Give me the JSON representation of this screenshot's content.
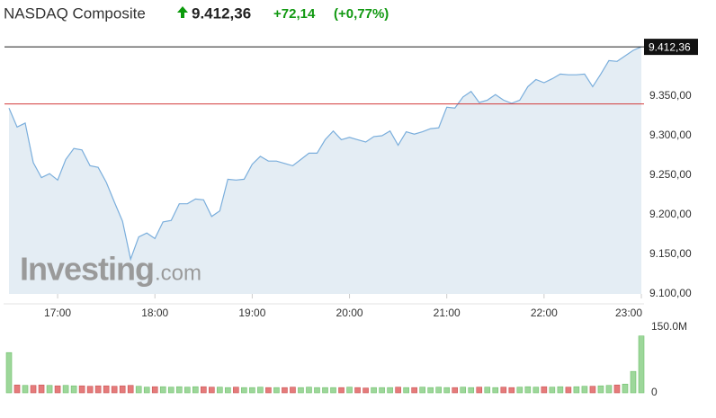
{
  "chart_data": {
    "type": "area",
    "title": "NASDAQ Composite",
    "price_label": "9.412,36",
    "change_label": "+72,14",
    "change_pct_label": "(+0,77%)",
    "watermark": "Investing",
    "watermark_suffix": ".com",
    "last": {
      "value": 9412.36,
      "label": "9.412,36"
    },
    "prev_close": 9340.22,
    "x": [
      "16:30",
      "16:35",
      "16:40",
      "16:45",
      "16:50",
      "16:55",
      "17:00",
      "17:05",
      "17:10",
      "17:15",
      "17:20",
      "17:25",
      "17:30",
      "17:35",
      "17:40",
      "17:45",
      "17:50",
      "17:55",
      "18:00",
      "18:05",
      "18:10",
      "18:15",
      "18:20",
      "18:25",
      "18:30",
      "18:35",
      "18:40",
      "18:45",
      "18:50",
      "18:55",
      "19:00",
      "19:05",
      "19:10",
      "19:15",
      "19:20",
      "19:25",
      "19:30",
      "19:35",
      "19:40",
      "19:45",
      "19:50",
      "19:55",
      "20:00",
      "20:05",
      "20:10",
      "20:15",
      "20:20",
      "20:25",
      "20:30",
      "20:35",
      "20:40",
      "20:45",
      "20:50",
      "20:55",
      "21:00",
      "21:05",
      "21:10",
      "21:15",
      "21:20",
      "21:25",
      "21:30",
      "21:35",
      "21:40",
      "21:45",
      "21:50",
      "21:55",
      "22:00",
      "22:05",
      "22:10",
      "22:15",
      "22:20",
      "22:25",
      "22:30",
      "22:35",
      "22:40",
      "22:45",
      "22:50",
      "22:55",
      "23:00"
    ],
    "xlim": [
      "16:30",
      "23:00"
    ],
    "xticks": [
      "17:00",
      "18:00",
      "19:00",
      "20:00",
      "21:00",
      "22:00",
      "23:00"
    ],
    "series": [
      {
        "name": "NASDAQ Composite",
        "color": "#7aaedc",
        "fill": "#e4edf4",
        "values": [
          9335,
          9311,
          9316,
          9266,
          9247,
          9252,
          9244,
          9270,
          9284,
          9282,
          9262,
          9260,
          9241,
          9216,
          9192,
          9144,
          9172,
          9177,
          9170,
          9191,
          9193,
          9214,
          9214,
          9220,
          9219,
          9198,
          9205,
          9245,
          9244,
          9245,
          9264,
          9274,
          9268,
          9268,
          9265,
          9262,
          9270,
          9278,
          9278,
          9295,
          9306,
          9295,
          9298,
          9295,
          9292,
          9299,
          9300,
          9306,
          9288,
          9305,
          9302,
          9305,
          9309,
          9310,
          9336,
          9335,
          9349,
          9356,
          9342,
          9345,
          9352,
          9345,
          9341,
          9345,
          9362,
          9371,
          9367,
          9372,
          9378,
          9377,
          9377,
          9378,
          9362,
          9378,
          9395,
          9394,
          9401,
          9408,
          9412.36
        ]
      }
    ],
    "ylim": [
      9100,
      9420
    ],
    "yticks": [
      {
        "value": 9100,
        "label": "9.100,00"
      },
      {
        "value": 9150,
        "label": "9.150,00"
      },
      {
        "value": 9200,
        "label": "9.200,00"
      },
      {
        "value": 9250,
        "label": "9.250,00"
      },
      {
        "value": 9300,
        "label": "9.300,00"
      },
      {
        "value": 9350,
        "label": "9.350,00"
      }
    ],
    "volume": {
      "up_color": "#9dd79a",
      "down_color": "#e57b7b",
      "values": [
        92,
        18,
        17,
        17,
        18,
        17,
        16,
        17,
        16,
        16,
        15,
        16,
        16,
        15,
        16,
        17,
        15,
        13,
        14,
        14,
        13,
        14,
        13,
        14,
        14,
        13,
        13,
        12,
        13,
        12,
        12,
        13,
        12,
        12,
        12,
        13,
        12,
        13,
        12,
        12,
        12,
        12,
        13,
        12,
        11,
        12,
        12,
        12,
        13,
        12,
        12,
        13,
        12,
        13,
        12,
        12,
        13,
        12,
        13,
        13,
        12,
        13,
        12,
        13,
        14,
        13,
        14,
        13,
        14,
        13,
        14,
        15,
        15,
        16,
        17,
        18,
        20,
        49,
        130
      ],
      "ylim": [
        0,
        150
      ],
      "yticks": [
        0,
        {
          "value": 150,
          "label": "150.0M"
        }
      ]
    }
  }
}
